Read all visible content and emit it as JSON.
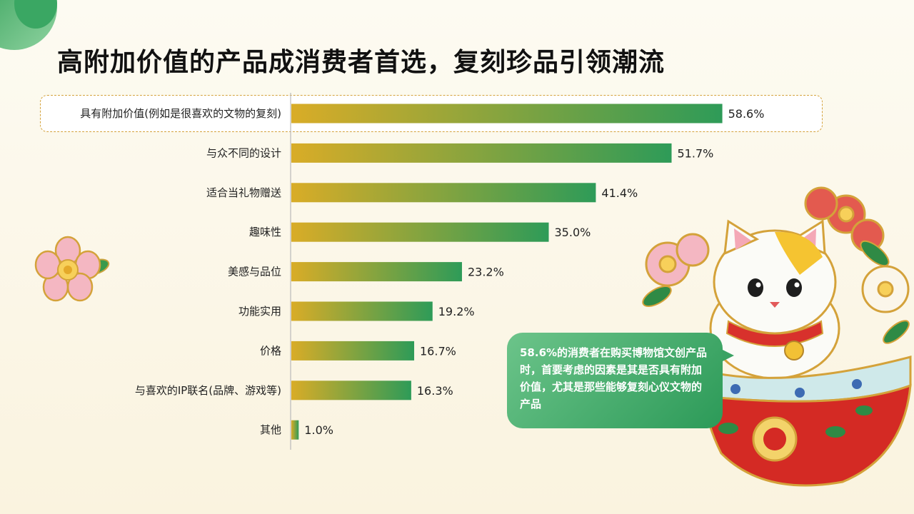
{
  "title": "高附加价值的产品成消费者首选，复刻珍品引领潮流",
  "callout": "58.6%的消费者在购买博物馆文创产品时，首要考虑的因素是其是否具有附加价值，尤其是那些能够复刻心仪文物的产品",
  "colors": {
    "bar_start": "#d9ac27",
    "bar_end": "#2e9b58",
    "highlight_border": "#d4a23a",
    "callout": "#3aa263"
  },
  "icons": [
    "pink-flower-pin-icon",
    "lucky-cat-bowl-illustration"
  ],
  "chart_data": {
    "type": "bar",
    "orientation": "horizontal",
    "categories": [
      "具有附加价值(例如是很喜欢的文物的复刻)",
      "与众不同的设计",
      "适合当礼物赠送",
      "趣味性",
      "美感与品位",
      "功能实用",
      "价格",
      "与喜欢的IP联名(品牌、游戏等)",
      "其他"
    ],
    "values": [
      58.6,
      51.7,
      41.4,
      35.0,
      23.2,
      19.2,
      16.7,
      16.3,
      1.0
    ],
    "value_labels": [
      "58.6%",
      "51.7%",
      "41.4%",
      "35.0%",
      "23.2%",
      "19.2%",
      "16.7%",
      "16.3%",
      "1.0%"
    ],
    "highlighted_category": "具有附加价值(例如是很喜欢的文物的复刻)",
    "xlim": [
      0,
      60
    ],
    "grid": false
  }
}
